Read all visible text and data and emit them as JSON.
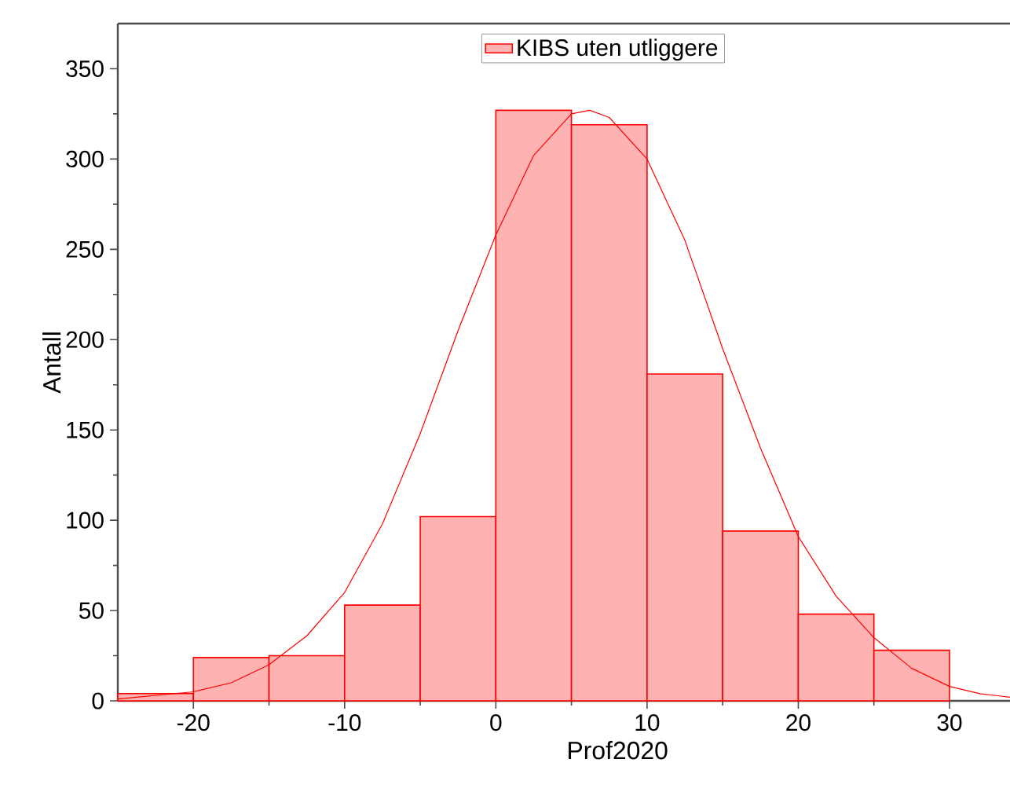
{
  "chart_data": {
    "type": "histogram",
    "xlabel": "Prof2020",
    "ylabel": "Antall",
    "xlim": [
      -25,
      34
    ],
    "ylim": [
      0,
      375
    ],
    "xticks": [
      -20,
      -10,
      0,
      10,
      20,
      30
    ],
    "yticks": [
      0,
      50,
      100,
      150,
      200,
      250,
      300,
      350
    ],
    "legend": "top",
    "series": [
      {
        "name": "KIBS uten utliggere",
        "color": "#ff0000",
        "bins": [
          -25,
          -20,
          -15,
          -10,
          -5,
          0,
          5,
          10,
          15,
          20,
          25,
          30
        ],
        "values": [
          4,
          24,
          25,
          53,
          102,
          327,
          319,
          181,
          94,
          48,
          28
        ]
      },
      {
        "type": "line",
        "color": "#ff0000",
        "x": [
          -25,
          -20,
          -17.5,
          -15,
          -12.5,
          -10,
          -7.5,
          -5,
          -2.5,
          0,
          2.5,
          5,
          6.2,
          7.5,
          10,
          12.5,
          15,
          17.5,
          20,
          22.5,
          25,
          27.5,
          30,
          32,
          34
        ],
        "values": [
          1,
          5,
          10,
          20,
          36,
          60,
          98,
          148,
          205,
          258,
          302,
          325,
          327,
          323,
          300,
          255,
          195,
          140,
          91,
          58,
          35,
          18,
          8,
          4,
          2
        ]
      }
    ]
  }
}
